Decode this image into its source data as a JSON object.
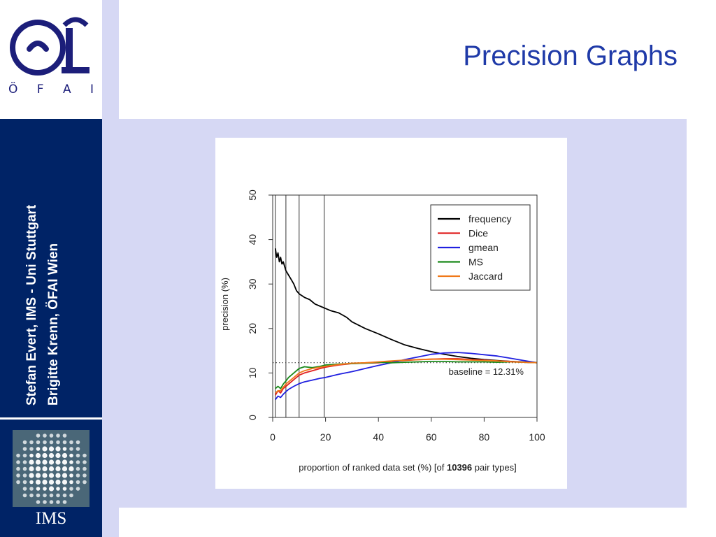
{
  "slide": {
    "title": "Precision Graphs",
    "logo_letters": [
      "Ö",
      "F",
      "A",
      "I"
    ],
    "author_lines": [
      "Stefan Evert, IMS - Uni Stuttgart",
      "Brigitte Krenn, ÖFAI Wien"
    ],
    "ims_label": "IMS"
  },
  "chart_data": {
    "type": "line",
    "title": "",
    "xlabel_parts": [
      "proportion of ranked data set (%) [of ",
      "10396",
      " pair types]"
    ],
    "ylabel": "precision (%)",
    "xlim": [
      0,
      100
    ],
    "ylim": [
      0,
      50
    ],
    "xticks": [
      0,
      20,
      40,
      60,
      80,
      100
    ],
    "yticks": [
      0,
      10,
      20,
      30,
      40,
      50
    ],
    "vlines": [
      1,
      5,
      10,
      19.5
    ],
    "baseline": 12.31,
    "baseline_label": "baseline = 12.31%",
    "legend_position": "top-right",
    "series": [
      {
        "name": "frequency",
        "color": "#000000",
        "x": [
          1,
          1.5,
          2,
          2.5,
          3,
          3.5,
          4,
          5,
          6,
          7,
          8,
          9,
          10,
          12,
          14,
          16,
          18,
          20,
          22,
          25,
          28,
          30,
          35,
          40,
          45,
          50,
          55,
          60,
          65,
          70,
          75,
          80,
          85,
          90,
          95,
          100
        ],
        "y": [
          38,
          36,
          37,
          35,
          36,
          34.5,
          35,
          33,
          32,
          31,
          30,
          28.5,
          27.8,
          27,
          26.5,
          25.5,
          25,
          24.5,
          24,
          23.5,
          22.5,
          21.5,
          20,
          18.8,
          17.5,
          16.3,
          15.5,
          14.8,
          14.2,
          13.7,
          13.3,
          13,
          12.8,
          12.6,
          12.45,
          12.31
        ]
      },
      {
        "name": "Dice",
        "color": "#e02020",
        "x": [
          1,
          2,
          3,
          4,
          5,
          6,
          8,
          10,
          12,
          15,
          18,
          20,
          25,
          30,
          35,
          40,
          45,
          50,
          55,
          60,
          65,
          70,
          75,
          80,
          85,
          90,
          95,
          100
        ],
        "y": [
          5,
          6,
          5.5,
          6.5,
          7,
          7.5,
          8.5,
          9.5,
          10,
          10.5,
          11,
          11.3,
          11.8,
          12.1,
          12.2,
          12.3,
          12.6,
          12.8,
          13,
          13.1,
          13.2,
          13.2,
          13,
          12.9,
          12.7,
          12.6,
          12.4,
          12.31
        ]
      },
      {
        "name": "gmean",
        "color": "#2020e0",
        "x": [
          1,
          2,
          3,
          4,
          5,
          6,
          8,
          10,
          12,
          15,
          18,
          20,
          25,
          30,
          35,
          40,
          45,
          50,
          55,
          60,
          65,
          70,
          75,
          80,
          85,
          90,
          95,
          100
        ],
        "y": [
          4,
          4.8,
          4.5,
          5.2,
          5.8,
          6.3,
          7,
          7.6,
          8,
          8.4,
          8.8,
          9,
          9.7,
          10.3,
          11,
          11.7,
          12.3,
          13,
          13.6,
          14.2,
          14.5,
          14.6,
          14.4,
          14.1,
          13.8,
          13.3,
          12.8,
          12.31
        ]
      },
      {
        "name": "MS",
        "color": "#1a8a1a",
        "x": [
          1,
          2,
          3,
          4,
          5,
          6,
          8,
          10,
          12,
          15,
          18,
          20,
          25,
          30,
          35,
          40,
          45,
          50,
          55,
          60,
          65,
          70,
          75,
          80,
          85,
          90,
          95,
          100
        ],
        "y": [
          6.5,
          7,
          6.5,
          7.5,
          8.2,
          9,
          10,
          11,
          11.4,
          11.2,
          11.5,
          11.8,
          12,
          12.1,
          12.2,
          12.4,
          12.3,
          12.4,
          12.5,
          12.6,
          12.6,
          12.5,
          12.5,
          12.5,
          12.4,
          12.5,
          12.4,
          12.31
        ]
      },
      {
        "name": "Jaccard",
        "color": "#f07818",
        "x": [
          1,
          2,
          3,
          4,
          5,
          6,
          8,
          10,
          12,
          15,
          18,
          20,
          25,
          30,
          35,
          40,
          45,
          50,
          55,
          60,
          65,
          70,
          75,
          80,
          85,
          90,
          95,
          100
        ],
        "y": [
          5.5,
          6,
          6,
          6.8,
          7.5,
          8,
          9,
          10,
          10.5,
          11,
          11.3,
          11.5,
          11.9,
          12.2,
          12.3,
          12.5,
          12.7,
          12.9,
          13,
          13.1,
          13.1,
          13,
          12.9,
          12.8,
          12.7,
          12.5,
          12.4,
          12.31
        ]
      }
    ]
  }
}
